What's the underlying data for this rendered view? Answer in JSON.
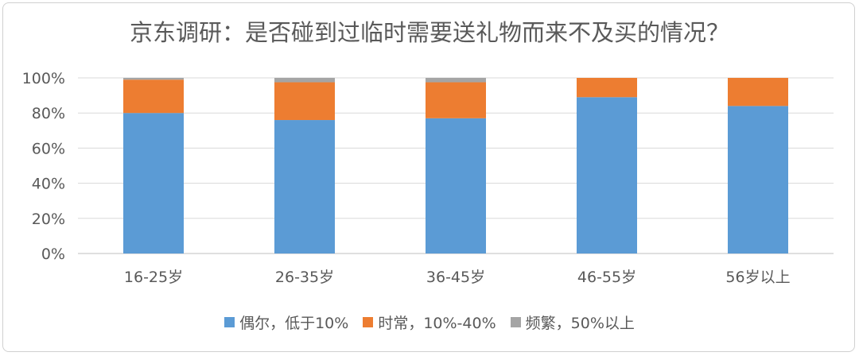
{
  "chart_data": {
    "type": "bar",
    "stacked": true,
    "title": "京东调研：是否碰到过临时需要送礼物而来不及买的情况？",
    "categories": [
      "16-25岁",
      "26-35岁",
      "36-45岁",
      "46-55岁",
      "56岁以上"
    ],
    "series": [
      {
        "name": "偶尔，低于10%",
        "color": "#5B9BD5",
        "values": [
          80,
          76,
          77,
          89,
          84
        ]
      },
      {
        "name": "时常，10%-40%",
        "color": "#ED7D31",
        "values": [
          19,
          21.5,
          20.5,
          11,
          16
        ]
      },
      {
        "name": "频繁，50%以上",
        "color": "#A5A5A5",
        "values": [
          1,
          2.5,
          2.5,
          0,
          0
        ]
      }
    ],
    "ylim": [
      0,
      100
    ],
    "yticks": [
      "0%",
      "20%",
      "40%",
      "60%",
      "80%",
      "100%"
    ],
    "grid": true,
    "legend_position": "bottom"
  }
}
